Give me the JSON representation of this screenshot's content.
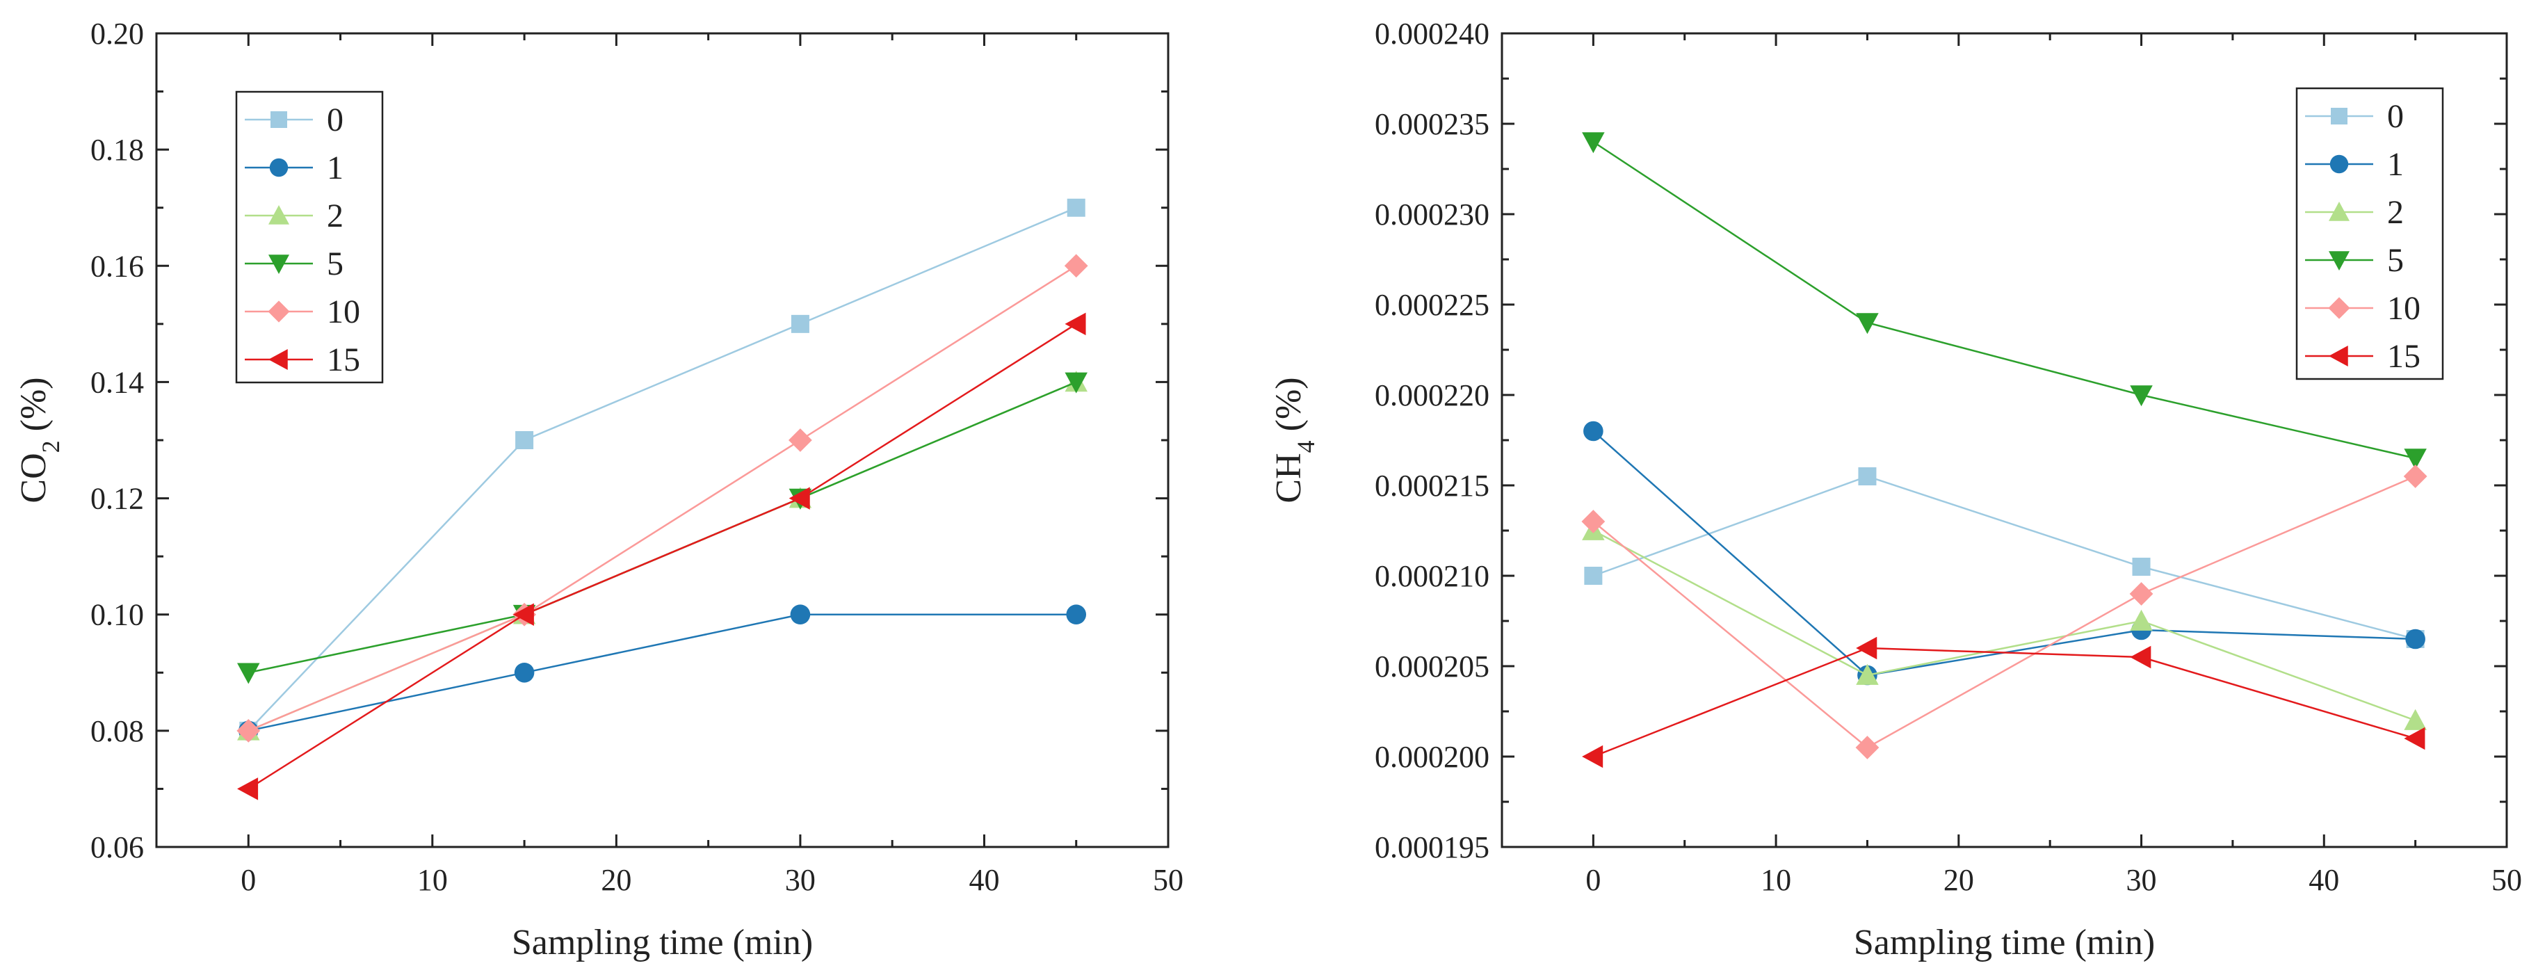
{
  "series_styles": [
    {
      "name": "0",
      "color": "#9ecae1",
      "marker": "square"
    },
    {
      "name": "1",
      "color": "#1f77b4",
      "marker": "circle"
    },
    {
      "name": "2",
      "color": "#b2df8a",
      "marker": "triangle-up"
    },
    {
      "name": "5",
      "color": "#2ca02c",
      "marker": "triangle-down"
    },
    {
      "name": "10",
      "color": "#fb9a99",
      "marker": "diamond"
    },
    {
      "name": "15",
      "color": "#e31a1c",
      "marker": "triangle-left"
    }
  ],
  "chart_data": [
    {
      "type": "line",
      "title": "",
      "xlabel": "Sampling time (min)",
      "ylabel_main": "CO",
      "ylabel_sub": "2",
      "ylabel_suffix": " (%)",
      "xlim": [
        -5,
        50
      ],
      "ylim": [
        0.06,
        0.2
      ],
      "xticks": [
        0,
        10,
        20,
        30,
        40,
        50
      ],
      "yticks": [
        "0.06",
        "0.08",
        "0.10",
        "0.12",
        "0.14",
        "0.16",
        "0.18",
        "0.20"
      ],
      "legend_position": "top-left",
      "x": [
        0,
        15,
        30,
        45
      ],
      "series": [
        {
          "name": "0",
          "values": [
            0.08,
            0.13,
            0.15,
            0.17
          ]
        },
        {
          "name": "1",
          "values": [
            0.08,
            0.09,
            0.1,
            0.1
          ]
        },
        {
          "name": "2",
          "values": [
            0.08,
            0.1,
            0.12,
            0.14
          ]
        },
        {
          "name": "5",
          "values": [
            0.09,
            0.1,
            0.12,
            0.14
          ]
        },
        {
          "name": "10",
          "values": [
            0.08,
            0.1,
            0.13,
            0.16
          ]
        },
        {
          "name": "15",
          "values": [
            0.07,
            0.1,
            0.12,
            0.15
          ]
        }
      ]
    },
    {
      "type": "line",
      "title": "",
      "xlabel": "Sampling time (min)",
      "ylabel_main": "CH",
      "ylabel_sub": "4",
      "ylabel_suffix": " (%)",
      "xlim": [
        -5,
        50
      ],
      "ylim": [
        0.000195,
        0.00024
      ],
      "xticks": [
        0,
        10,
        20,
        30,
        40,
        50
      ],
      "yticks": [
        "0.000195",
        "0.000200",
        "0.000205",
        "0.000210",
        "0.000215",
        "0.000220",
        "0.000225",
        "0.000230",
        "0.000235",
        "0.000240"
      ],
      "legend_position": "top-right",
      "x": [
        0,
        15,
        30,
        45
      ],
      "series": [
        {
          "name": "0",
          "values": [
            0.00021,
            0.0002155,
            0.0002105,
            0.0002065
          ]
        },
        {
          "name": "1",
          "values": [
            0.000218,
            0.0002045,
            0.000207,
            0.0002065
          ]
        },
        {
          "name": "2",
          "values": [
            0.0002125,
            0.0002045,
            0.0002075,
            0.000202
          ]
        },
        {
          "name": "5",
          "values": [
            0.000234,
            0.000224,
            0.00022,
            0.0002165
          ]
        },
        {
          "name": "10",
          "values": [
            0.000213,
            0.0002005,
            0.000209,
            0.0002155
          ]
        },
        {
          "name": "15",
          "values": [
            0.0002,
            0.000206,
            0.0002055,
            0.000201
          ]
        }
      ]
    }
  ]
}
